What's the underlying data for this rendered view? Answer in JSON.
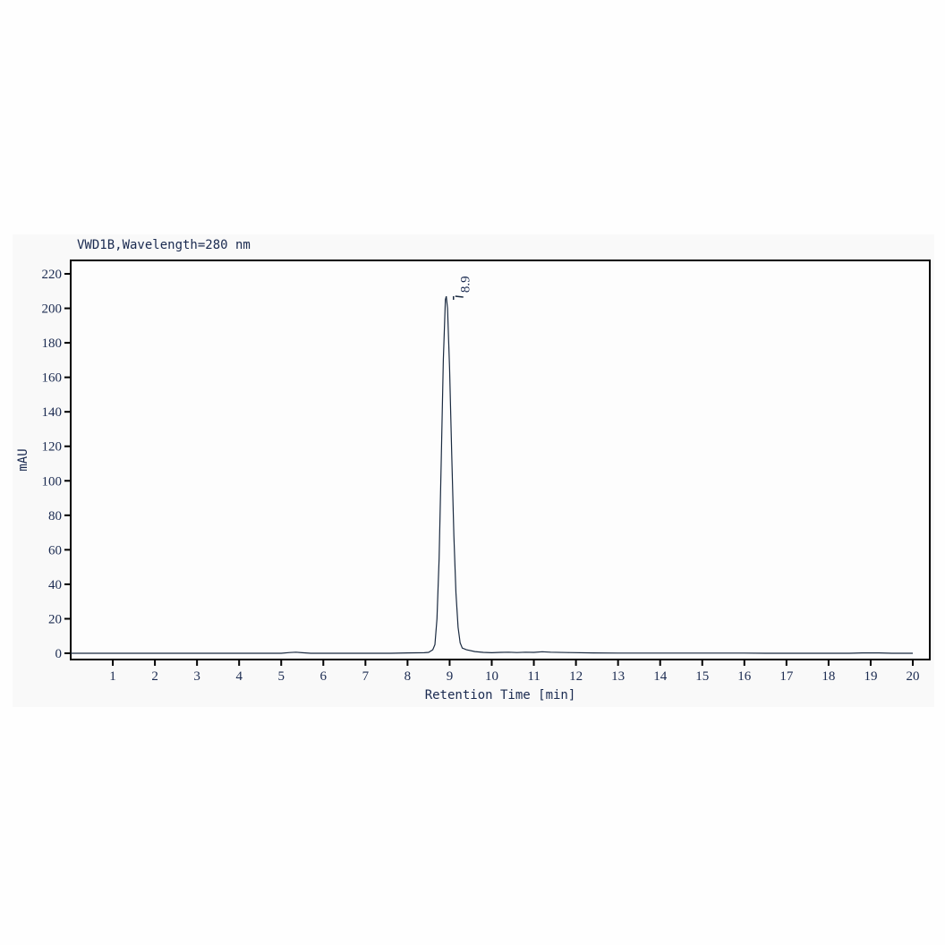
{
  "chart_data": {
    "type": "line",
    "title": "VWD1B,Wavelength=280 nm",
    "xlabel": "Retention Time [min]",
    "ylabel": "mAU",
    "xlim": [
      0,
      20.5
    ],
    "ylim": [
      -2,
      225
    ],
    "xticks": [
      1,
      2,
      3,
      4,
      5,
      6,
      7,
      8,
      9,
      10,
      11,
      12,
      13,
      14,
      15,
      16,
      17,
      18,
      19,
      20
    ],
    "yticks": [
      0,
      20,
      40,
      60,
      80,
      100,
      120,
      140,
      160,
      180,
      200,
      220
    ],
    "grid": false,
    "colors": {
      "trace": "#1a2a40",
      "axis": "#000000",
      "text": "#1a2a50"
    },
    "series": [
      {
        "points": [
          [
            0,
            0
          ],
          [
            5.0,
            0
          ],
          [
            5.2,
            0.4
          ],
          [
            5.35,
            0.6
          ],
          [
            5.5,
            0.3
          ],
          [
            5.7,
            0
          ],
          [
            7.6,
            0
          ],
          [
            8.0,
            0.2
          ],
          [
            8.4,
            0.3
          ],
          [
            8.5,
            0.5
          ],
          [
            8.6,
            2
          ],
          [
            8.65,
            5
          ],
          [
            8.7,
            20
          ],
          [
            8.75,
            55
          ],
          [
            8.8,
            110
          ],
          [
            8.85,
            170
          ],
          [
            8.9,
            205
          ],
          [
            8.92,
            207
          ],
          [
            8.95,
            200
          ],
          [
            9.0,
            165
          ],
          [
            9.05,
            115
          ],
          [
            9.1,
            68
          ],
          [
            9.15,
            35
          ],
          [
            9.2,
            15
          ],
          [
            9.25,
            6
          ],
          [
            9.3,
            3
          ],
          [
            9.4,
            2
          ],
          [
            9.6,
            1
          ],
          [
            9.8,
            0.5
          ],
          [
            10.0,
            0.3
          ],
          [
            10.2,
            0.5
          ],
          [
            10.4,
            0.6
          ],
          [
            10.6,
            0.4
          ],
          [
            10.8,
            0.6
          ],
          [
            11.0,
            0.5
          ],
          [
            11.2,
            0.9
          ],
          [
            11.4,
            0.6
          ],
          [
            11.8,
            0.4
          ],
          [
            12.4,
            0.2
          ],
          [
            13,
            0.1
          ],
          [
            16,
            0.1
          ],
          [
            16.5,
            0
          ],
          [
            18.5,
            0
          ],
          [
            18.8,
            0.2
          ],
          [
            19.2,
            0.2
          ],
          [
            19.5,
            0
          ],
          [
            20,
            0
          ]
        ]
      }
    ],
    "annotations": [
      {
        "label": "8.9",
        "x": 8.9,
        "y": 207
      }
    ]
  }
}
